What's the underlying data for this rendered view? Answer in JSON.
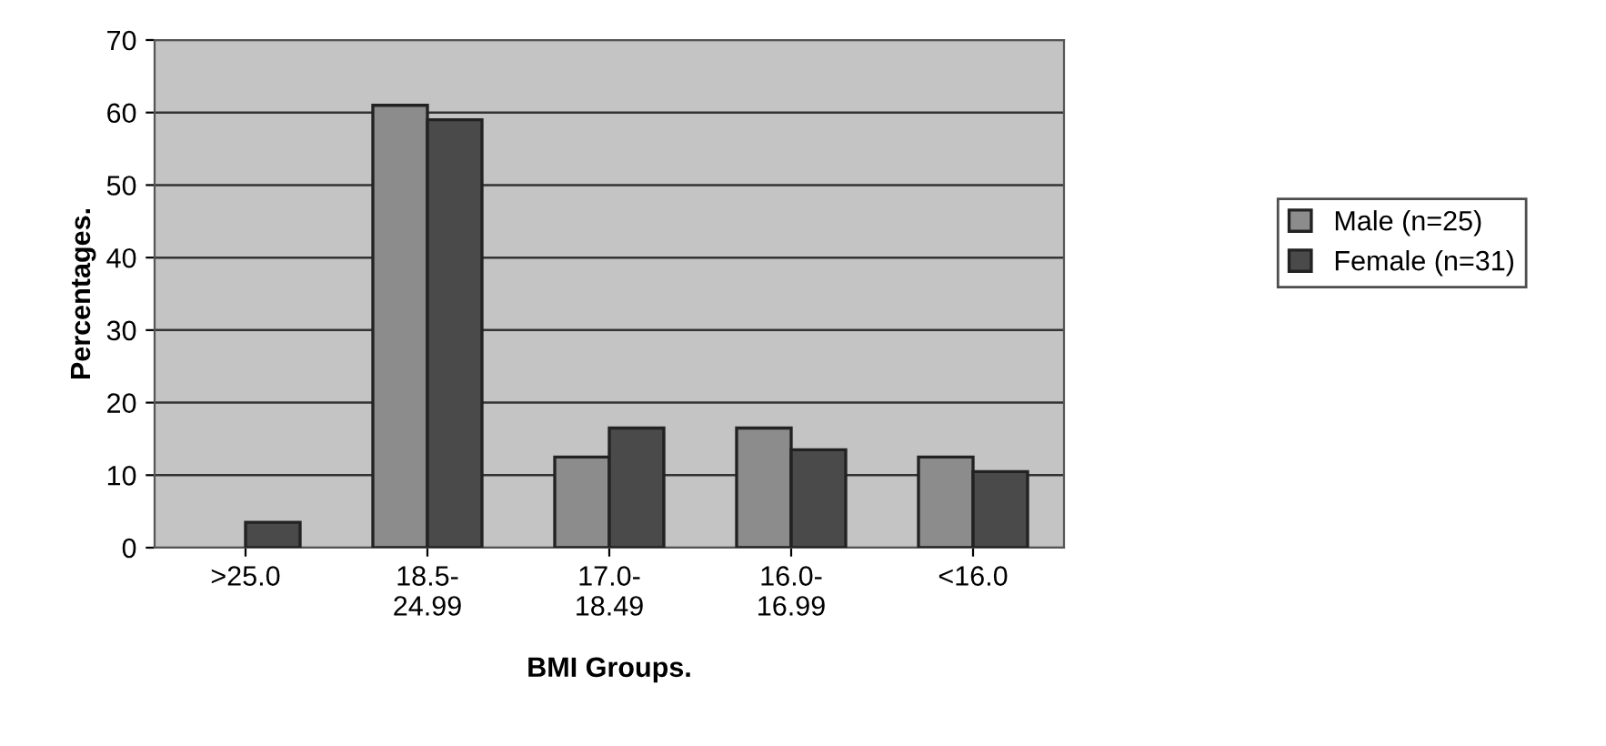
{
  "chart_data": {
    "type": "bar",
    "xlabel": "BMI Groups.",
    "ylabel": "Percentages.",
    "categories": [
      ">25.0",
      "18.5-\n24.99",
      "17.0-\n18.49",
      "16.0-\n16.99",
      "<16.0"
    ],
    "series": [
      {
        "name": "Male (n=25)",
        "color": "#8c8c8c",
        "values": [
          null,
          61,
          12.5,
          16.5,
          12.5
        ]
      },
      {
        "name": "Female (n=31)",
        "color": "#4a4a4a",
        "values": [
          3.5,
          59,
          16.5,
          13.5,
          10.5
        ]
      }
    ],
    "ylim": [
      0,
      70
    ],
    "yticks": [
      0,
      10,
      20,
      30,
      40,
      50,
      60,
      70
    ],
    "grid": "y",
    "legend": "right"
  }
}
